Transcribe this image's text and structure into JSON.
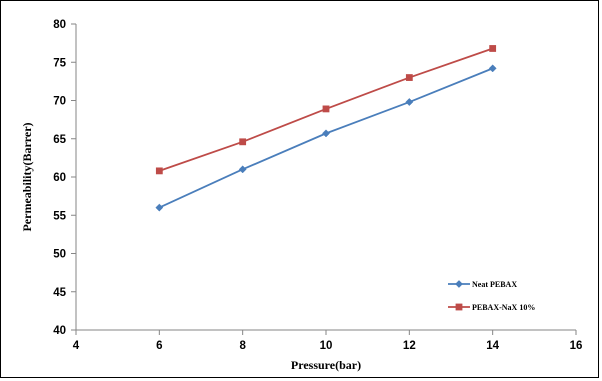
{
  "chart_data": {
    "type": "line",
    "title": "",
    "xlabel": "Pressure(bar)",
    "ylabel": "Permeability(Barrer)",
    "xlim": [
      4,
      16
    ],
    "ylim": [
      40,
      80
    ],
    "x_ticks": [
      "4",
      "6",
      "8",
      "10",
      "12",
      "14",
      "16"
    ],
    "y_ticks": [
      "40",
      "45",
      "50",
      "55",
      "60",
      "65",
      "70",
      "75",
      "80"
    ],
    "grid": false,
    "legend_position": "bottom-right",
    "series": [
      {
        "name": "Neat PEBAX",
        "color": "#4A7EBB",
        "marker": "diamond",
        "x": [
          6,
          8,
          10,
          12,
          14
        ],
        "y": [
          56.0,
          61.0,
          65.7,
          69.8,
          74.2
        ]
      },
      {
        "name": "PEBAX-NaX 10%",
        "color": "#BE4B48",
        "marker": "square",
        "x": [
          6,
          8,
          10,
          12,
          14
        ],
        "y": [
          60.8,
          64.6,
          68.9,
          73.0,
          76.8
        ]
      }
    ]
  }
}
